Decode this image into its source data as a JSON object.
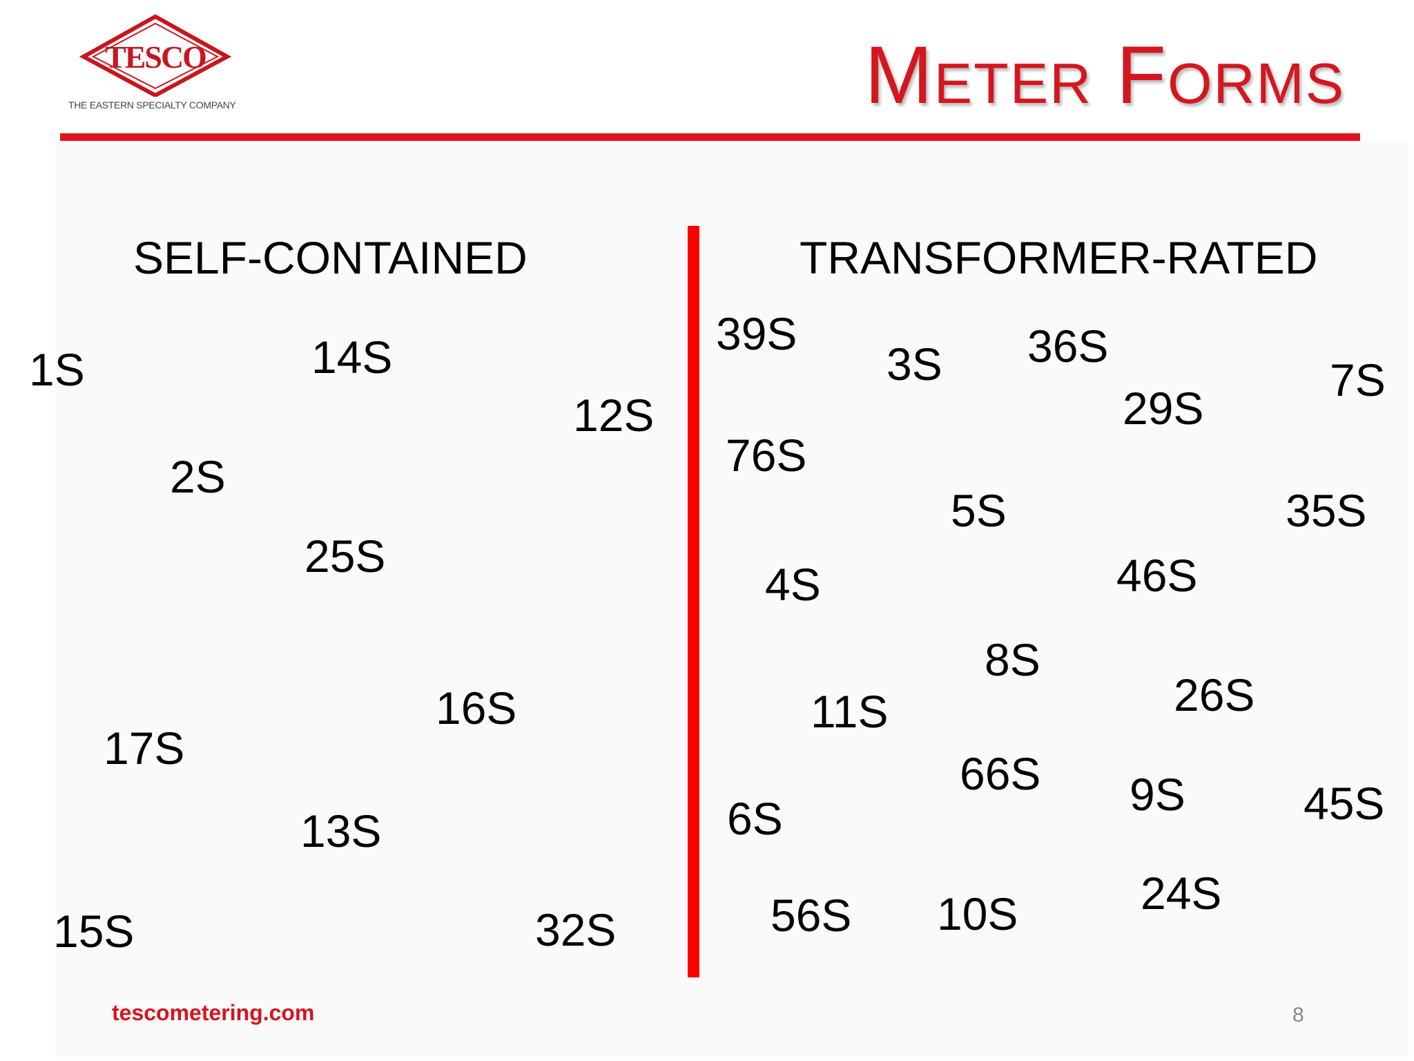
{
  "logo": {
    "wordmark": "TESCO",
    "tagline": "THE EASTERN SPECIALTY COMPANY"
  },
  "title": "Meter Forms",
  "colors": {
    "accent": "#d4161e",
    "divider": "#ff0000"
  },
  "self_contained": {
    "heading": "SELF-CONTAINED",
    "forms": [
      "1S",
      "14S",
      "12S",
      "2S",
      "25S",
      "16S",
      "17S",
      "13S",
      "15S",
      "32S"
    ]
  },
  "transformer_rated": {
    "heading": "TRANSFORMER-RATED",
    "forms": [
      "39S",
      "3S",
      "36S",
      "7S",
      "29S",
      "76S",
      "5S",
      "35S",
      "4S",
      "46S",
      "8S",
      "26S",
      "11S",
      "66S",
      "9S",
      "45S",
      "6S",
      "24S",
      "56S",
      "10S"
    ]
  },
  "footer": {
    "url": "tescometering.com",
    "page_number": "8"
  }
}
